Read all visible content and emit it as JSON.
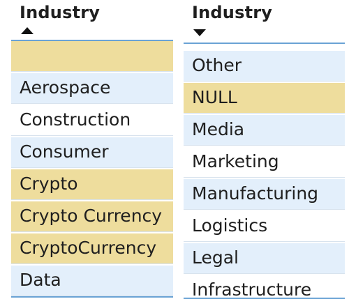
{
  "colors": {
    "row_default": "#e3effb",
    "row_white": "#ffffff",
    "row_highlight": "#eedd9d",
    "header_rule": "#6aa3d5",
    "text": "#1f1f1f"
  },
  "left_table": {
    "column_header": "Industry",
    "sort_direction": "ascending",
    "sort_icon": "triangle-up-icon",
    "rows": [
      {
        "label": "",
        "style": "highlight"
      },
      {
        "label": "Aerospace",
        "style": "default"
      },
      {
        "label": "Construction",
        "style": "white"
      },
      {
        "label": "Consumer",
        "style": "default"
      },
      {
        "label": "Crypto",
        "style": "highlight"
      },
      {
        "label": "Crypto Currency",
        "style": "highlight"
      },
      {
        "label": "CryptoCurrency",
        "style": "highlight"
      },
      {
        "label": "Data",
        "style": "default"
      }
    ]
  },
  "right_table": {
    "column_header": "Industry",
    "sort_direction": "descending",
    "sort_icon": "triangle-down-icon",
    "rows": [
      {
        "label": "Other",
        "style": "default"
      },
      {
        "label": "NULL",
        "style": "highlight"
      },
      {
        "label": "Media",
        "style": "default"
      },
      {
        "label": "Marketing",
        "style": "white"
      },
      {
        "label": "Manufacturing",
        "style": "default"
      },
      {
        "label": "Logistics",
        "style": "white"
      },
      {
        "label": "Legal",
        "style": "default"
      },
      {
        "label": "Infrastructure",
        "style": "white"
      }
    ]
  }
}
